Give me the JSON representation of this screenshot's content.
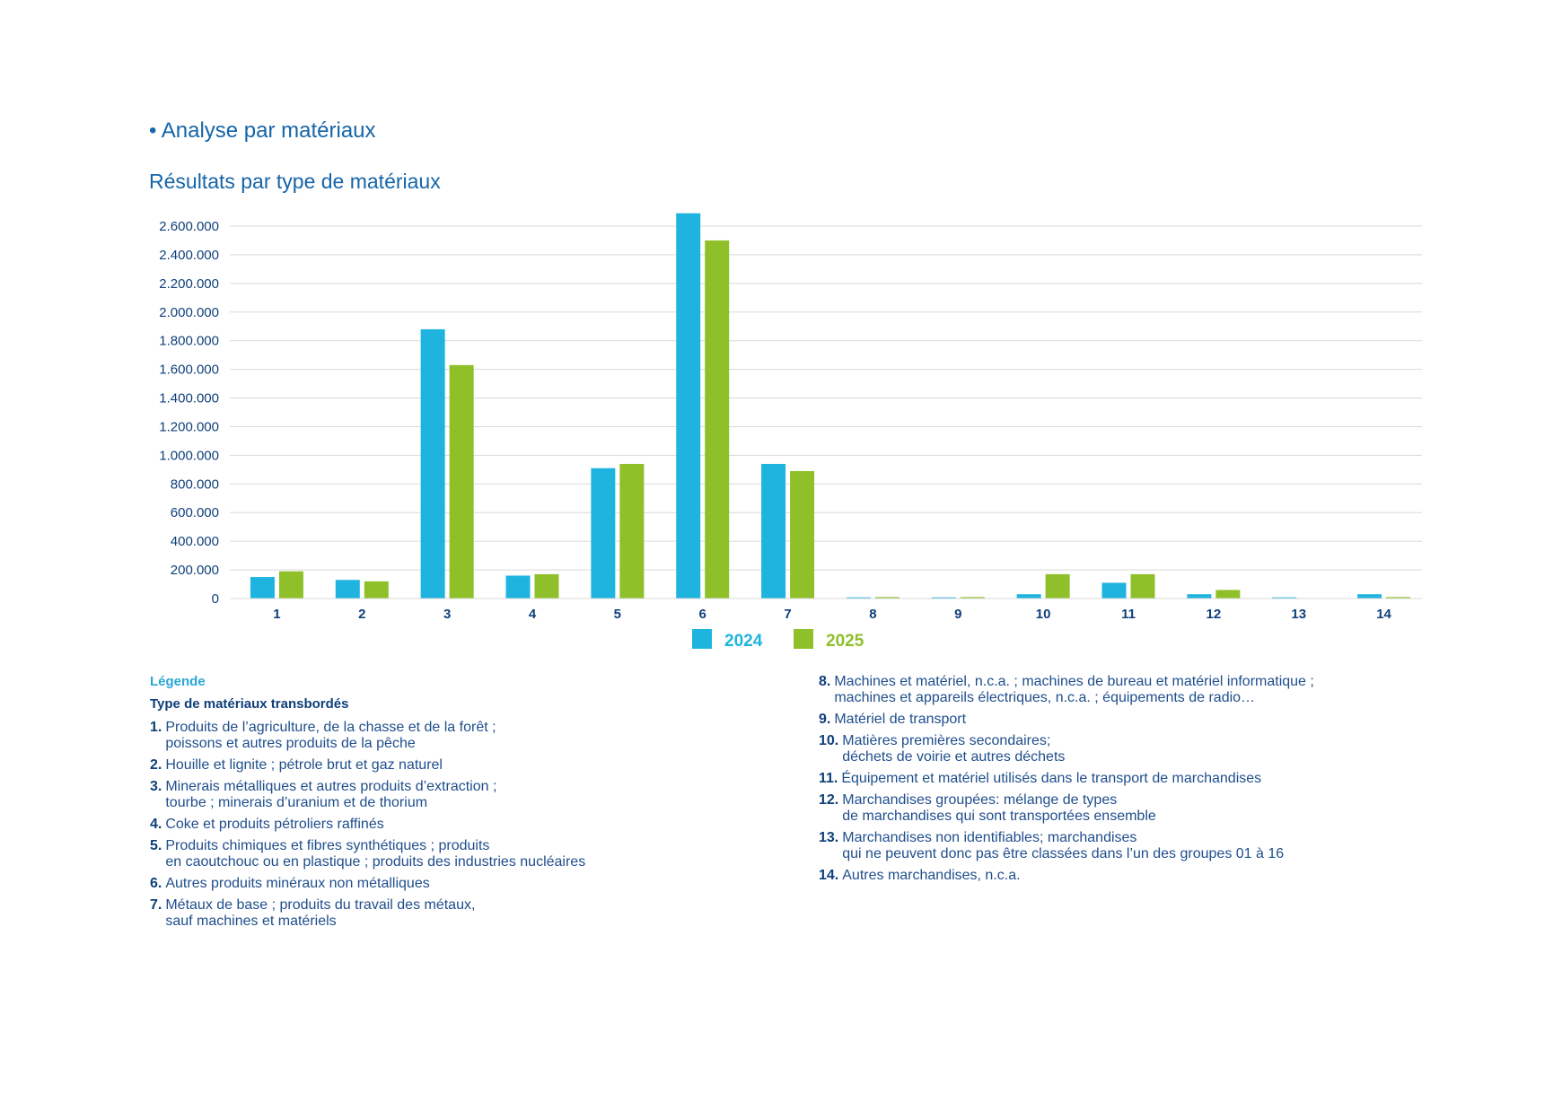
{
  "section_title": "• Analyse par matériaux",
  "chart_data": {
    "type": "bar",
    "title": "Résultats par type de matériaux",
    "categories": [
      "1",
      "2",
      "3",
      "4",
      "5",
      "6",
      "7",
      "8",
      "9",
      "10",
      "11",
      "12",
      "13",
      "14"
    ],
    "series": [
      {
        "name": "2024",
        "color": "#1fb4e0",
        "values": [
          150000,
          130000,
          1880000,
          160000,
          910000,
          2690000,
          940000,
          8000,
          8000,
          30000,
          110000,
          30000,
          8000,
          30000
        ]
      },
      {
        "name": "2025",
        "color": "#8fc02a",
        "values": [
          190000,
          120000,
          1630000,
          170000,
          940000,
          2500000,
          890000,
          10000,
          10000,
          170000,
          170000,
          60000,
          0,
          10000
        ]
      }
    ],
    "ylim": [
      0,
      2600000
    ],
    "yticks": [
      "0",
      "200.000",
      "400.000",
      "600.000",
      "800.000",
      "1.000.000",
      "1.200.000",
      "1.400.000",
      "1.600.000",
      "1.800.000",
      "2.000.000",
      "2.200.000",
      "2.400.000",
      "2.600.000"
    ],
    "grid": true,
    "legend_position": "bottom"
  },
  "legend": {
    "heading": "Légende",
    "subheading": "Type de matériaux transbordés",
    "items": [
      {
        "num": "1.",
        "text": "Produits de l’agriculture, de la chasse et de la forêt ;\npoissons et autres produits de la pêche"
      },
      {
        "num": "2.",
        "text": "Houille et lignite ; pétrole brut et gaz naturel"
      },
      {
        "num": "3.",
        "text": "Minerais métalliques et autres produits d’extraction ;\ntourbe ; minerais d’uranium et de thorium"
      },
      {
        "num": "4.",
        "text": "Coke et produits pétroliers raffinés"
      },
      {
        "num": "5.",
        "text": "Produits chimiques et fibres synthétiques ; produits\nen caoutchouc ou en plastique ; produits des industries nucléaires"
      },
      {
        "num": "6.",
        "text": "Autres produits minéraux non métalliques"
      },
      {
        "num": "7.",
        "text": "Métaux de base ; produits du travail des métaux,\nsauf machines et matériels"
      },
      {
        "num": "8.",
        "text": "Machines et matériel, n.c.a. ; machines de bureau et matériel informatique ;\nmachines et appareils électriques, n.c.a. ; équipements de radio…"
      },
      {
        "num": "9.",
        "text": "Matériel de transport"
      },
      {
        "num": "10.",
        "text": "Matières premières secondaires;\ndéchets de voirie et autres déchets"
      },
      {
        "num": "11.",
        "text": "Équipement et matériel utilisés dans le transport de marchandises"
      },
      {
        "num": "12.",
        "text": "Marchandises groupées: mélange de types\nde marchandises qui sont transportées ensemble"
      },
      {
        "num": "13.",
        "text": "Marchandises non identifiables; marchandises\nqui ne peuvent donc pas être classées dans l’un des groupes 01 à 16"
      },
      {
        "num": "14.",
        "text": "Autres marchandises, n.c.a."
      }
    ]
  }
}
